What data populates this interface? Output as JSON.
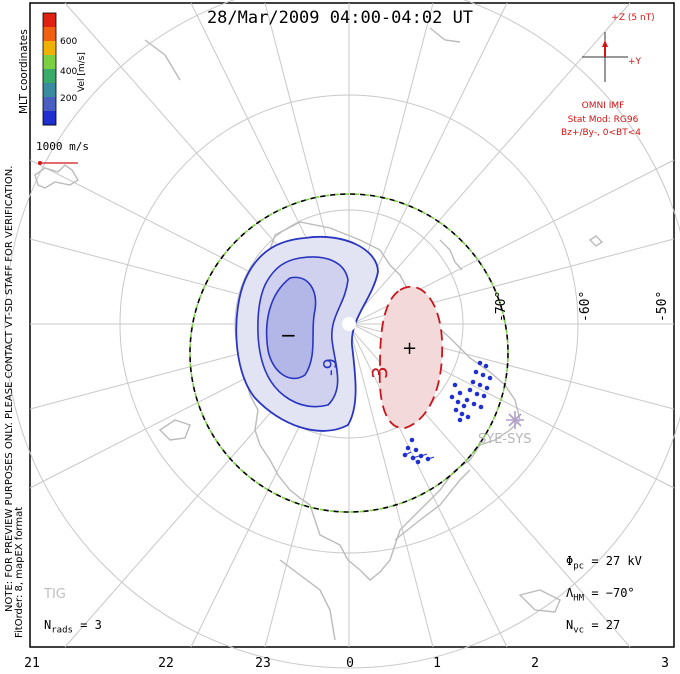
{
  "title": "28/Mar/2009 04:00-04:02 UT",
  "colorbar": {
    "label": "Vel [m/s]",
    "ticks": [
      "600",
      "400",
      "200"
    ],
    "colors": [
      "#e02010",
      "#f06010",
      "#f0b000",
      "#7ad040",
      "#3aaa6a",
      "#3a8aa0",
      "#4a60c0",
      "#2030d0"
    ]
  },
  "coord_label": "MLT coordinates",
  "vector_scale": "1000 m/s",
  "note_line1": "NOTE: FOR PREVIEW PURPOSES ONLY. PLEASE CONTACT VT-SD STAFF FOR VERIFICATION.",
  "note_line2": "FitOrder: 8, mapEX format",
  "imf": {
    "z_label": "+Z (5 nT)",
    "y_label": "+Y",
    "source": "OMNI IMF",
    "model": "Stat Mod: RG96",
    "condition": "Bz+/By-, 0<BT<4"
  },
  "contours": {
    "neg_min": "−",
    "neg_label": "-9",
    "pos_max": "+",
    "pos_label": "3"
  },
  "latitudes": [
    "-70°",
    "-60°",
    "-50°"
  ],
  "mlt_ticks": [
    "21",
    "22",
    "23",
    "0",
    "1",
    "2",
    "3"
  ],
  "station_labels": [
    "SYE-SYS",
    "TIG"
  ],
  "stats": {
    "phi_sym": "Φ",
    "phi_sub": "pc",
    "phi_val": "= 27 kV",
    "lambda_sym": "Λ",
    "lambda_sub": "HM",
    "lambda_val": "= −70°",
    "nvc_sym": "N",
    "nvc_sub": "vc",
    "nvc_val": "= 27",
    "nrads_sym": "N",
    "nrads_sub": "rads",
    "nrads_val": "= 3"
  }
}
